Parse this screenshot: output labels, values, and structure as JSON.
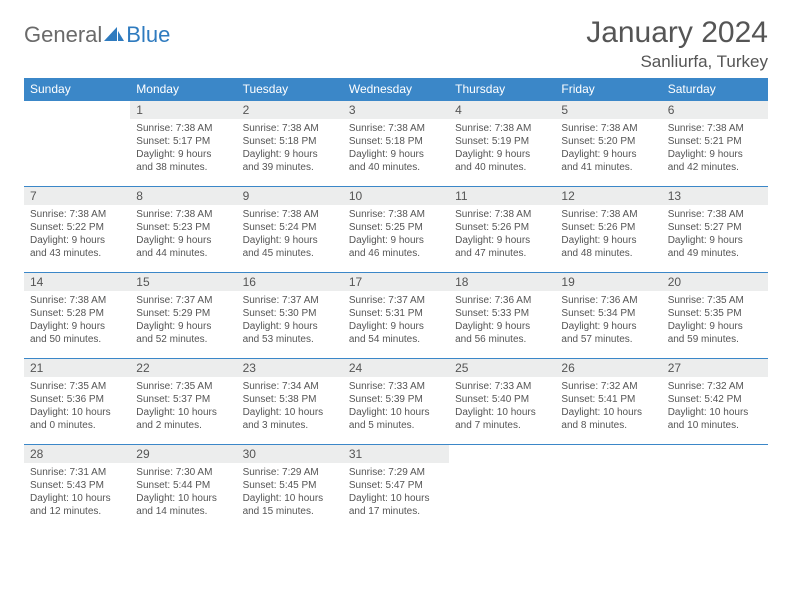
{
  "logo": {
    "text1": "General",
    "text2": "Blue"
  },
  "title": "January 2024",
  "location": "Sanliurfa, Turkey",
  "weekdays": [
    "Sunday",
    "Monday",
    "Tuesday",
    "Wednesday",
    "Thursday",
    "Friday",
    "Saturday"
  ],
  "colors": {
    "header_bg": "#3b87c8",
    "header_text": "#ffffff",
    "daynum_bg": "#eceded",
    "border": "#3b87c8",
    "body_text": "#555555"
  },
  "typography": {
    "title_fontsize": 30,
    "location_fontsize": 17,
    "weekday_fontsize": 12,
    "daynum_fontsize": 12,
    "cell_fontsize": 10
  },
  "grid": {
    "rows": 5,
    "cols": 7,
    "start_offset": 1,
    "days_in_month": 31
  },
  "days": [
    {
      "n": 1,
      "sunrise": "7:38 AM",
      "sunset": "5:17 PM",
      "daylight": "9 hours and 38 minutes."
    },
    {
      "n": 2,
      "sunrise": "7:38 AM",
      "sunset": "5:18 PM",
      "daylight": "9 hours and 39 minutes."
    },
    {
      "n": 3,
      "sunrise": "7:38 AM",
      "sunset": "5:18 PM",
      "daylight": "9 hours and 40 minutes."
    },
    {
      "n": 4,
      "sunrise": "7:38 AM",
      "sunset": "5:19 PM",
      "daylight": "9 hours and 40 minutes."
    },
    {
      "n": 5,
      "sunrise": "7:38 AM",
      "sunset": "5:20 PM",
      "daylight": "9 hours and 41 minutes."
    },
    {
      "n": 6,
      "sunrise": "7:38 AM",
      "sunset": "5:21 PM",
      "daylight": "9 hours and 42 minutes."
    },
    {
      "n": 7,
      "sunrise": "7:38 AM",
      "sunset": "5:22 PM",
      "daylight": "9 hours and 43 minutes."
    },
    {
      "n": 8,
      "sunrise": "7:38 AM",
      "sunset": "5:23 PM",
      "daylight": "9 hours and 44 minutes."
    },
    {
      "n": 9,
      "sunrise": "7:38 AM",
      "sunset": "5:24 PM",
      "daylight": "9 hours and 45 minutes."
    },
    {
      "n": 10,
      "sunrise": "7:38 AM",
      "sunset": "5:25 PM",
      "daylight": "9 hours and 46 minutes."
    },
    {
      "n": 11,
      "sunrise": "7:38 AM",
      "sunset": "5:26 PM",
      "daylight": "9 hours and 47 minutes."
    },
    {
      "n": 12,
      "sunrise": "7:38 AM",
      "sunset": "5:26 PM",
      "daylight": "9 hours and 48 minutes."
    },
    {
      "n": 13,
      "sunrise": "7:38 AM",
      "sunset": "5:27 PM",
      "daylight": "9 hours and 49 minutes."
    },
    {
      "n": 14,
      "sunrise": "7:38 AM",
      "sunset": "5:28 PM",
      "daylight": "9 hours and 50 minutes."
    },
    {
      "n": 15,
      "sunrise": "7:37 AM",
      "sunset": "5:29 PM",
      "daylight": "9 hours and 52 minutes."
    },
    {
      "n": 16,
      "sunrise": "7:37 AM",
      "sunset": "5:30 PM",
      "daylight": "9 hours and 53 minutes."
    },
    {
      "n": 17,
      "sunrise": "7:37 AM",
      "sunset": "5:31 PM",
      "daylight": "9 hours and 54 minutes."
    },
    {
      "n": 18,
      "sunrise": "7:36 AM",
      "sunset": "5:33 PM",
      "daylight": "9 hours and 56 minutes."
    },
    {
      "n": 19,
      "sunrise": "7:36 AM",
      "sunset": "5:34 PM",
      "daylight": "9 hours and 57 minutes."
    },
    {
      "n": 20,
      "sunrise": "7:35 AM",
      "sunset": "5:35 PM",
      "daylight": "9 hours and 59 minutes."
    },
    {
      "n": 21,
      "sunrise": "7:35 AM",
      "sunset": "5:36 PM",
      "daylight": "10 hours and 0 minutes."
    },
    {
      "n": 22,
      "sunrise": "7:35 AM",
      "sunset": "5:37 PM",
      "daylight": "10 hours and 2 minutes."
    },
    {
      "n": 23,
      "sunrise": "7:34 AM",
      "sunset": "5:38 PM",
      "daylight": "10 hours and 3 minutes."
    },
    {
      "n": 24,
      "sunrise": "7:33 AM",
      "sunset": "5:39 PM",
      "daylight": "10 hours and 5 minutes."
    },
    {
      "n": 25,
      "sunrise": "7:33 AM",
      "sunset": "5:40 PM",
      "daylight": "10 hours and 7 minutes."
    },
    {
      "n": 26,
      "sunrise": "7:32 AM",
      "sunset": "5:41 PM",
      "daylight": "10 hours and 8 minutes."
    },
    {
      "n": 27,
      "sunrise": "7:32 AM",
      "sunset": "5:42 PM",
      "daylight": "10 hours and 10 minutes."
    },
    {
      "n": 28,
      "sunrise": "7:31 AM",
      "sunset": "5:43 PM",
      "daylight": "10 hours and 12 minutes."
    },
    {
      "n": 29,
      "sunrise": "7:30 AM",
      "sunset": "5:44 PM",
      "daylight": "10 hours and 14 minutes."
    },
    {
      "n": 30,
      "sunrise": "7:29 AM",
      "sunset": "5:45 PM",
      "daylight": "10 hours and 15 minutes."
    },
    {
      "n": 31,
      "sunrise": "7:29 AM",
      "sunset": "5:47 PM",
      "daylight": "10 hours and 17 minutes."
    }
  ],
  "labels": {
    "sunrise": "Sunrise:",
    "sunset": "Sunset:",
    "daylight": "Daylight:"
  }
}
